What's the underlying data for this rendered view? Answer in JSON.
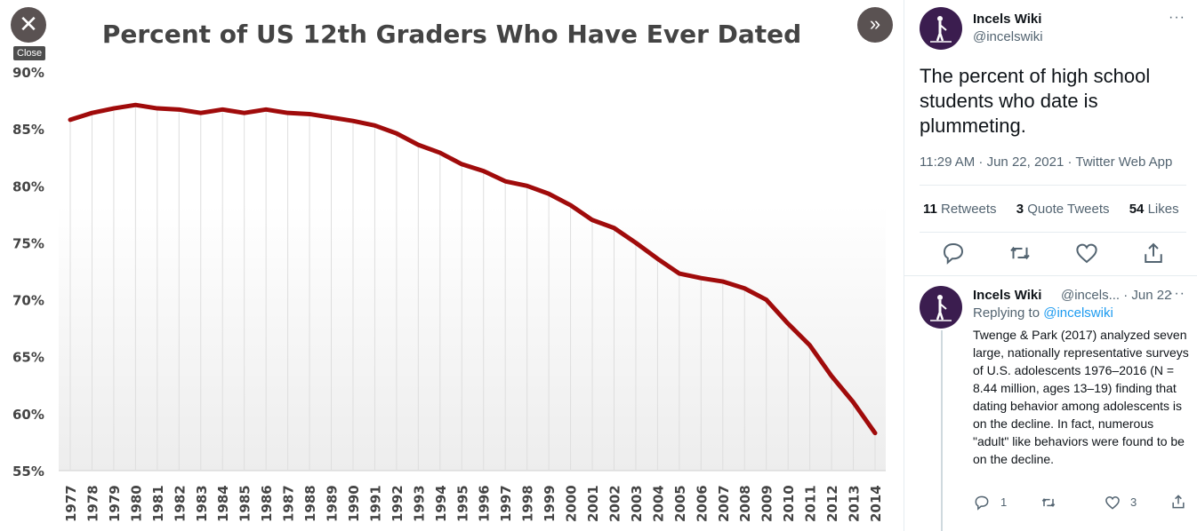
{
  "viewer": {
    "close_glyph": "✕",
    "close_tooltip": "Close",
    "expand_glyph": "»"
  },
  "chart_data": {
    "type": "line",
    "title": "Percent of US 12th Graders Who Have Ever Dated",
    "xlabel": "",
    "ylabel": "",
    "ylim": [
      55,
      90
    ],
    "yticks": [
      "90%",
      "85%",
      "80%",
      "75%",
      "70%",
      "65%",
      "60%",
      "55%"
    ],
    "grid": "vertical",
    "categories": [
      "1977",
      "1978",
      "1979",
      "1980",
      "1981",
      "1982",
      "1983",
      "1984",
      "1985",
      "1986",
      "1987",
      "1988",
      "1989",
      "1990",
      "1991",
      "1992",
      "1993",
      "1994",
      "1995",
      "1996",
      "1997",
      "1998",
      "1999",
      "2000",
      "2001",
      "2002",
      "2003",
      "2004",
      "2005",
      "2006",
      "2007",
      "2008",
      "2009",
      "2010",
      "2011",
      "2012",
      "2013",
      "2014"
    ],
    "series": [
      {
        "values": [
          85.8,
          86.4,
          86.8,
          87.1,
          86.8,
          86.7,
          86.4,
          86.7,
          86.4,
          86.7,
          86.4,
          86.3,
          86.0,
          85.7,
          85.3,
          84.6,
          83.6,
          82.9,
          81.9,
          81.3,
          80.4,
          80.0,
          79.3,
          78.3,
          77.0,
          76.3,
          75.0,
          73.6,
          72.3,
          71.9,
          71.6,
          71.0,
          70.0,
          67.9,
          66.0,
          63.3,
          61.0,
          58.3
        ],
        "color": "#a00b0b"
      }
    ]
  },
  "tweet": {
    "name": "Incels Wiki",
    "handle": "@incelswiki",
    "more": "···",
    "text": "The percent of high school students who date is plummeting.",
    "meta": "11:29 AM · Jun 22, 2021 · Twitter Web App",
    "retweets_count": "11",
    "retweets_label": "Retweets",
    "quotes_count": "3",
    "quotes_label": "Quote Tweets",
    "likes_count": "54",
    "likes_label": "Likes"
  },
  "reply": {
    "name": "Incels Wiki",
    "handle_date": "@incels... · Jun 22",
    "more": "···",
    "replying_prefix": "Replying to ",
    "replying_to": "@incelswiki",
    "text": "Twenge & Park (2017) analyzed seven large, nationally representative surveys of U.S. adolescents 1976–2016 (N = 8.44 million, ages 13–19) finding that dating behavior among adolescents is on the decline. In fact, numerous \"adult\" like behaviors were found to be on the decline.",
    "reply_count": "1",
    "like_count": "3"
  },
  "colors": {
    "line": "#a00b0b",
    "viewer_button": "#5a5252",
    "avatar": "#3b1d4f",
    "link": "#1d9bf0"
  }
}
